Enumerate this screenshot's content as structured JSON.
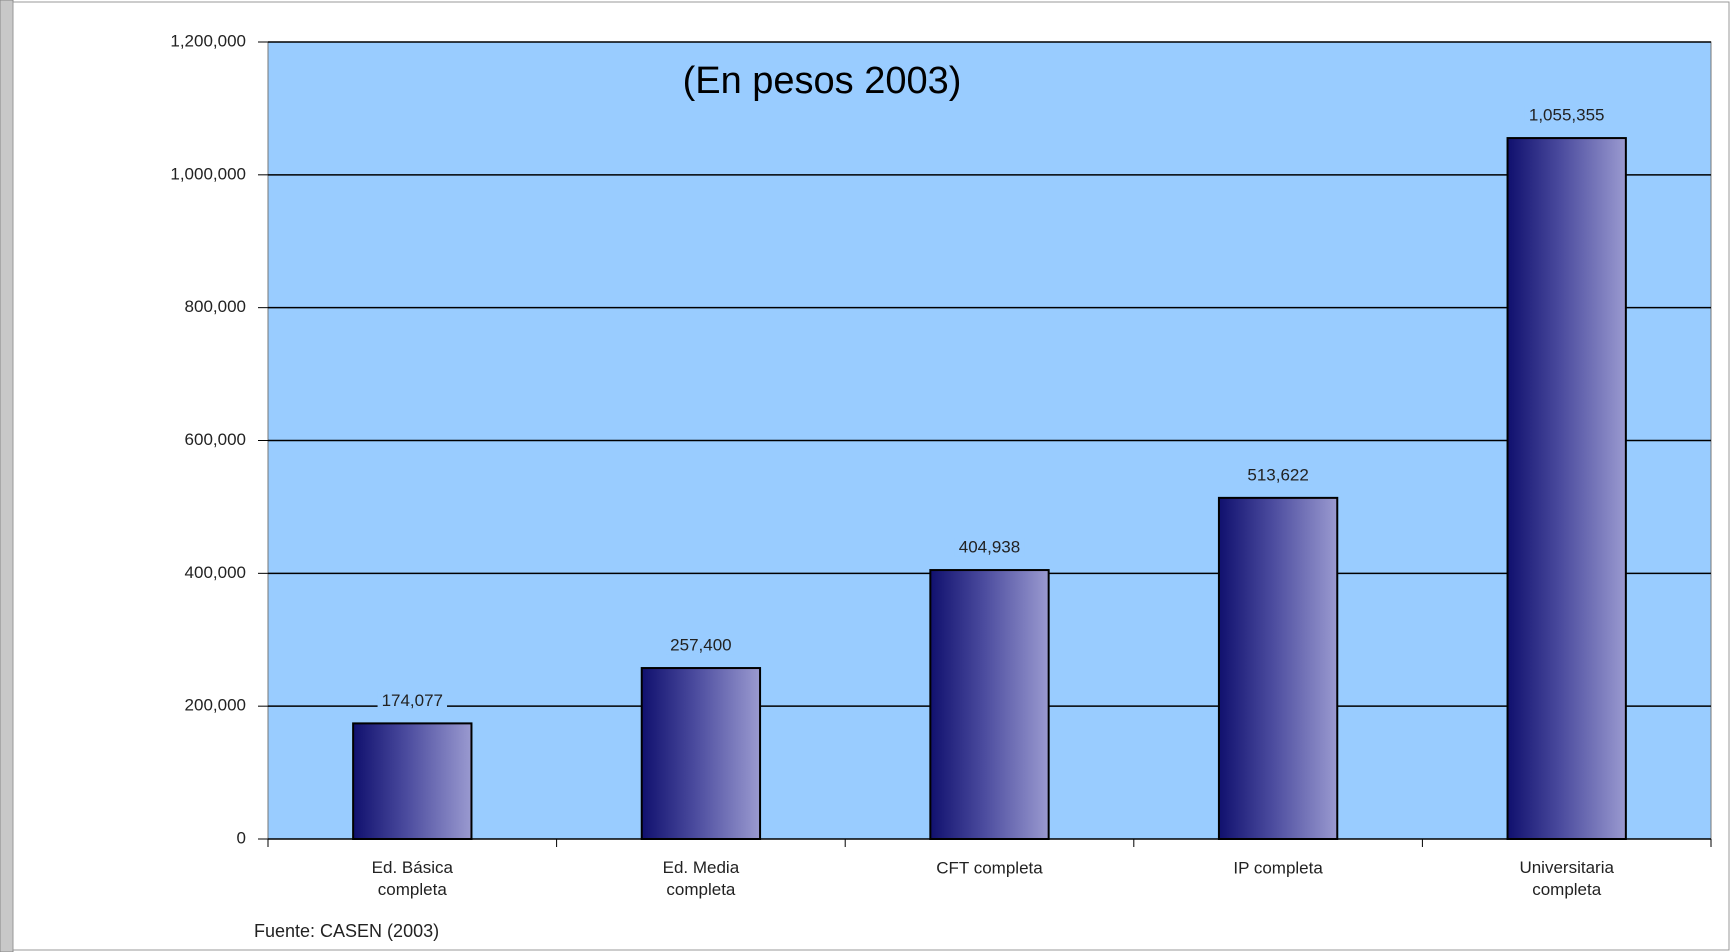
{
  "chart_data": {
    "type": "bar",
    "subtitle": "(En pesos 2003)",
    "source": "Fuente: CASEN (2003)",
    "categories": [
      "Ed. Básica\ncompleta",
      "Ed. Media\ncompleta",
      "CFT completa",
      "IP completa",
      "Universitaria\ncompleta"
    ],
    "values": [
      174077,
      257400,
      404938,
      513622,
      1055355
    ],
    "value_labels": [
      "174,077",
      "257,400",
      "404,938",
      "513,622",
      "1,055,355"
    ],
    "color": "#1a1a80",
    "ylim": [
      0,
      1200000
    ],
    "yticks": [
      0,
      {
        "value": 200000,
        "label": "200,000"
      },
      {
        "value": 400000,
        "label": "400,000"
      },
      {
        "value": 600000,
        "label": "600,000"
      },
      {
        "value": 800000,
        "label": "800,000"
      },
      {
        "value": 1000000,
        "label": "1,000,000"
      },
      {
        "value": 1200000,
        "label": "1,200,000"
      }
    ],
    "grid": true
  }
}
